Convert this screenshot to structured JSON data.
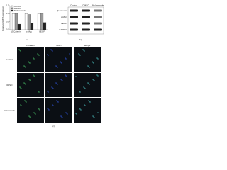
{
  "chart_data": {
    "type": "bar",
    "ylabel": "Relative mRNA expression",
    "categories": [
      "β-Catenin",
      "c-Myc",
      "VEGF"
    ],
    "series": [
      {
        "name": "Control",
        "color": "#ffffff",
        "values": [
          1.0,
          1.0,
          1.0
        ]
      },
      {
        "name": "DMSO",
        "color": "#9a9a9a",
        "values": [
          1.0,
          0.95,
          1.0
        ]
      },
      {
        "name": "Niclosamide",
        "color": "#222222",
        "values": [
          0.35,
          0.4,
          0.45
        ]
      }
    ],
    "ylim": [
      0,
      1.5
    ],
    "yticks": [
      {
        "value": 0,
        "label": "0.0"
      },
      {
        "value": 0.5,
        "label": "0.5"
      },
      {
        "value": 1,
        "label": "1.0"
      },
      {
        "value": 1.5,
        "label": "1.5"
      }
    ],
    "legend": "top-left"
  },
  "blot": {
    "columns": [
      "Control",
      "DMSO",
      "Niclosamide"
    ],
    "rows": [
      "β-Catenin",
      "c-Myc",
      "VEGF",
      "GAPDH"
    ]
  },
  "images": {
    "columns": [
      "β-Catenin",
      "DAPI",
      "Merge"
    ],
    "rows": [
      "Control",
      "DMSO",
      "Niclosamide"
    ]
  },
  "panels": [
    "(a)",
    "(b)",
    "(c)"
  ]
}
